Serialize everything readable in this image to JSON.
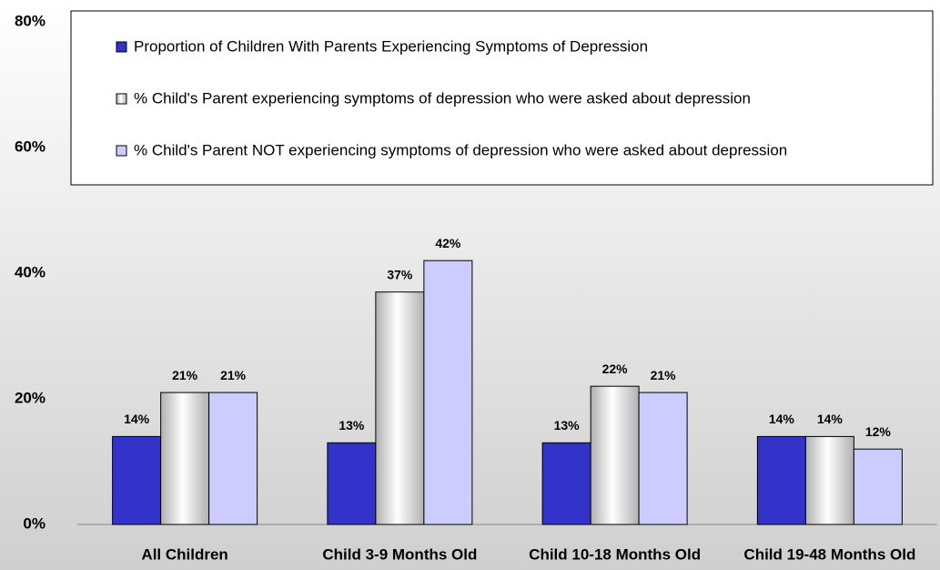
{
  "chart_data": {
    "type": "bar",
    "categories": [
      "All Children",
      "Child 3-9 Months Old",
      "Child 10-18 Months Old",
      "Child 19-48 Months Old"
    ],
    "series": [
      {
        "name": "Proportion of Children With Parents Experiencing Symptoms of Depression",
        "color": "#3333cc",
        "values": [
          14,
          13,
          13,
          14
        ],
        "value_labels": [
          "14%",
          "13%",
          "13%",
          "14%"
        ]
      },
      {
        "name": "% Child's Parent experiencing symptoms of depression who were asked about depression",
        "color": "#b0b0b0",
        "values": [
          21,
          37,
          22,
          14
        ],
        "value_labels": [
          "21%",
          "37%",
          "22%",
          "14%"
        ]
      },
      {
        "name": "% Child's Parent NOT experiencing symptoms of depression who were asked about depression",
        "color": "#ccccff",
        "values": [
          21,
          42,
          21,
          12
        ],
        "value_labels": [
          "21%",
          "42%",
          "21%",
          "12%"
        ]
      }
    ],
    "ylim": [
      0,
      80
    ],
    "yticks": [
      {
        "value": 0,
        "label": "0%"
      },
      {
        "value": 20,
        "label": "20%"
      },
      {
        "value": 40,
        "label": "40%"
      },
      {
        "value": 60,
        "label": "60%"
      },
      {
        "value": 80,
        "label": "80%"
      }
    ],
    "legend": "top"
  }
}
